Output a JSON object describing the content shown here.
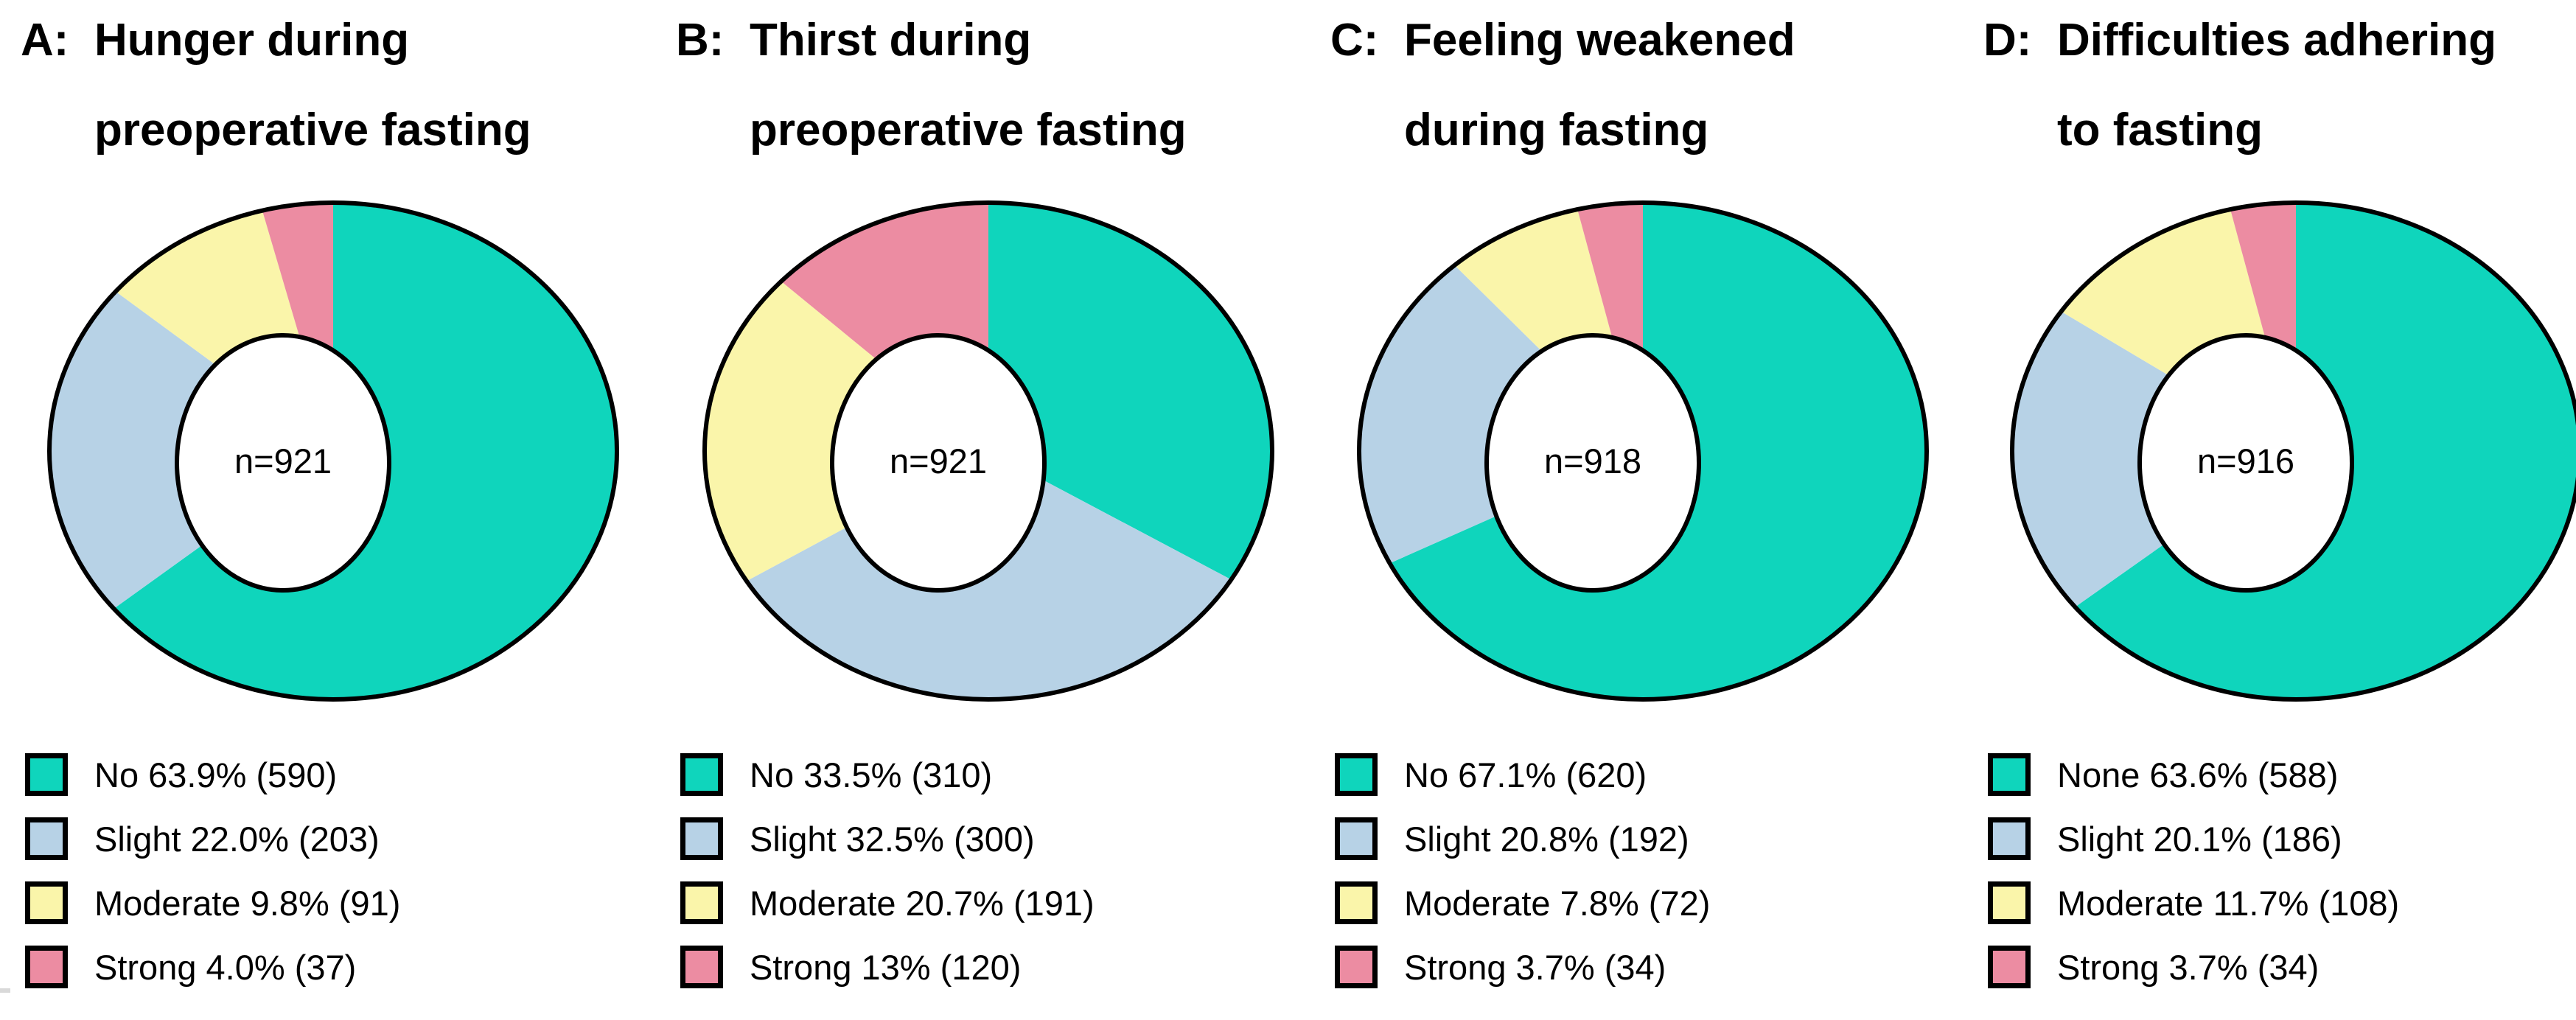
{
  "figure": {
    "background": "#ffffff"
  },
  "colors": {
    "no": "#0FD5BC",
    "slight": "#B7D2E6",
    "moderate": "#FAF5AA",
    "strong": "#EC8CA2",
    "outline": "#000000",
    "center_text": "#000000"
  },
  "chart_data": [
    {
      "type": "pie",
      "subtype": "donut",
      "panel_letter": "A:",
      "title": "Hunger during\npreoperative fasting",
      "center_label": "n=921",
      "total": 921,
      "legend_position": "bottom-left",
      "start_angle_deg": 0,
      "direction": "clockwise",
      "slices": [
        {
          "label": "No",
          "percent": 63.9,
          "count": 590,
          "color_key": "no",
          "legend_text": "No 63.9% (590)"
        },
        {
          "label": "Slight",
          "percent": 22.0,
          "count": 203,
          "color_key": "slight",
          "legend_text": "Slight 22.0% (203)"
        },
        {
          "label": "Moderate",
          "percent": 9.8,
          "count": 91,
          "color_key": "moderate",
          "legend_text": "Moderate 9.8% (91)"
        },
        {
          "label": "Strong",
          "percent": 4.0,
          "count": 37,
          "color_key": "strong",
          "legend_text": "Strong 4.0% (37)"
        }
      ]
    },
    {
      "type": "pie",
      "subtype": "donut",
      "panel_letter": "B:",
      "title": "Thirst during\npreoperative fasting",
      "center_label": "n=921",
      "total": 921,
      "legend_position": "bottom-left",
      "start_angle_deg": 0,
      "direction": "clockwise",
      "slices": [
        {
          "label": "No",
          "percent": 33.5,
          "count": 310,
          "color_key": "no",
          "legend_text": "No 33.5% (310)"
        },
        {
          "label": "Slight",
          "percent": 32.5,
          "count": 300,
          "color_key": "slight",
          "legend_text": "Slight 32.5% (300)"
        },
        {
          "label": "Moderate",
          "percent": 20.7,
          "count": 191,
          "color_key": "moderate",
          "legend_text": "Moderate 20.7% (191)"
        },
        {
          "label": "Strong",
          "percent": 13,
          "count": 120,
          "color_key": "strong",
          "legend_text": "Strong 13% (120)"
        }
      ]
    },
    {
      "type": "pie",
      "subtype": "donut",
      "panel_letter": "C:",
      "title": "Feeling weakened\nduring fasting",
      "center_label": "n=918",
      "total": 918,
      "legend_position": "bottom-left",
      "start_angle_deg": 0,
      "direction": "clockwise",
      "slices": [
        {
          "label": "No",
          "percent": 67.1,
          "count": 620,
          "color_key": "no",
          "legend_text": "No 67.1% (620)"
        },
        {
          "label": "Slight",
          "percent": 20.8,
          "count": 192,
          "color_key": "slight",
          "legend_text": "Slight 20.8% (192)"
        },
        {
          "label": "Moderate",
          "percent": 7.8,
          "count": 72,
          "color_key": "moderate",
          "legend_text": "Moderate 7.8% (72)"
        },
        {
          "label": "Strong",
          "percent": 3.7,
          "count": 34,
          "color_key": "strong",
          "legend_text": "Strong 3.7% (34)"
        }
      ]
    },
    {
      "type": "pie",
      "subtype": "donut",
      "panel_letter": "D:",
      "title": "Difficulties adhering\nto fasting",
      "center_label": "n=916",
      "total": 916,
      "legend_position": "bottom-left",
      "start_angle_deg": 0,
      "direction": "clockwise",
      "slices": [
        {
          "label": "None",
          "percent": 63.6,
          "count": 588,
          "color_key": "no",
          "legend_text": "None 63.6% (588)"
        },
        {
          "label": "Slight",
          "percent": 20.1,
          "count": 186,
          "color_key": "slight",
          "legend_text": "Slight 20.1% (186)"
        },
        {
          "label": "Moderate",
          "percent": 11.7,
          "count": 108,
          "color_key": "moderate",
          "legend_text": "Moderate 11.7% (108)"
        },
        {
          "label": "Strong",
          "percent": 3.7,
          "count": 34,
          "color_key": "strong",
          "legend_text": "Strong 3.7% (34)"
        }
      ]
    }
  ]
}
